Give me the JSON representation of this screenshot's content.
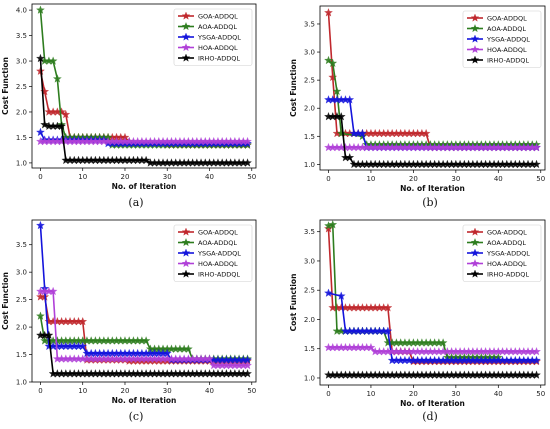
{
  "chart_data": [
    {
      "type": "line",
      "panel_label": "(a)",
      "xlabel": "No. of Iteration",
      "ylabel": "Cost Function",
      "xlim": [
        -2,
        51
      ],
      "ylim": [
        0.9,
        4.12
      ],
      "xticks": [
        0,
        10,
        20,
        30,
        40,
        50
      ],
      "yticks": [
        1.0,
        1.5,
        2.0,
        2.5,
        3.0,
        3.5,
        4.0
      ],
      "xtick_labels": [
        "0",
        "10",
        "20",
        "30",
        "40",
        "50"
      ],
      "ytick_labels": [
        "1.0",
        "1.5",
        "2.0",
        "2.5",
        "3.0",
        "3.5",
        "4.0"
      ],
      "legend_position": "top-right",
      "series": [
        {
          "name": "GOA-ADDQL",
          "color": "#c0282d",
          "points": [
            [
              0,
              2.8
            ],
            [
              1,
              2.4
            ],
            [
              2,
              2.0
            ],
            [
              5,
              2.0
            ],
            [
              6,
              1.95
            ],
            [
              7,
              1.5
            ],
            [
              20,
              1.5
            ],
            [
              21,
              1.42
            ],
            [
              30,
              1.35
            ],
            [
              49,
              1.35
            ]
          ]
        },
        {
          "name": "AOA-ADDQL",
          "color": "#2e7d1f",
          "points": [
            [
              0,
              4.0
            ],
            [
              1,
              3.0
            ],
            [
              3,
              3.0
            ],
            [
              4,
              2.65
            ],
            [
              5,
              1.75
            ],
            [
              6,
              1.5
            ],
            [
              16,
              1.5
            ],
            [
              17,
              1.35
            ],
            [
              49,
              1.35
            ]
          ]
        },
        {
          "name": "YSGA-ADDQL",
          "color": "#1414dc",
          "points": [
            [
              0,
              1.6
            ],
            [
              1,
              1.45
            ],
            [
              15,
              1.45
            ],
            [
              16,
              1.38
            ],
            [
              49,
              1.38
            ]
          ]
        },
        {
          "name": "HOA-ADDQL",
          "color": "#b040d8",
          "points": [
            [
              0,
              1.42
            ],
            [
              49,
              1.42
            ]
          ]
        },
        {
          "name": "IRHO-ADDQL",
          "color": "#000000",
          "points": [
            [
              0,
              3.05
            ],
            [
              1,
              1.75
            ],
            [
              2,
              1.72
            ],
            [
              5,
              1.72
            ],
            [
              6,
              1.05
            ],
            [
              25,
              1.05
            ],
            [
              26,
              1.0
            ],
            [
              49,
              1.0
            ]
          ]
        }
      ]
    },
    {
      "type": "line",
      "panel_label": "(b)",
      "xlabel": "No. of Iteration",
      "ylabel": "Cost Function",
      "xlim": [
        -2,
        51
      ],
      "ylim": [
        0.9,
        3.82
      ],
      "xticks": [
        0,
        10,
        20,
        30,
        40,
        50
      ],
      "yticks": [
        1.0,
        1.5,
        2.0,
        2.5,
        3.0,
        3.5
      ],
      "xtick_labels": [
        "0",
        "10",
        "20",
        "30",
        "40",
        "50"
      ],
      "ytick_labels": [
        "1.0",
        "1.5",
        "2.0",
        "2.5",
        "3.0",
        "3.5"
      ],
      "legend_position": "top-right",
      "series": [
        {
          "name": "GOA-ADDQL",
          "color": "#c0282d",
          "points": [
            [
              0,
              3.7
            ],
            [
              1,
              2.55
            ],
            [
              2,
              1.55
            ],
            [
              23,
              1.55
            ],
            [
              24,
              1.3
            ],
            [
              49,
              1.3
            ]
          ]
        },
        {
          "name": "AOA-ADDQL",
          "color": "#2e7d1f",
          "points": [
            [
              0,
              2.85
            ],
            [
              1,
              2.8
            ],
            [
              2,
              2.3
            ],
            [
              3,
              1.55
            ],
            [
              8,
              1.5
            ],
            [
              9,
              1.35
            ],
            [
              49,
              1.35
            ]
          ]
        },
        {
          "name": "YSGA-ADDQL",
          "color": "#1414dc",
          "points": [
            [
              0,
              2.15
            ],
            [
              5,
              2.15
            ],
            [
              6,
              1.55
            ],
            [
              8,
              1.55
            ],
            [
              9,
              1.3
            ],
            [
              49,
              1.3
            ]
          ]
        },
        {
          "name": "HOA-ADDQL",
          "color": "#b040d8",
          "points": [
            [
              0,
              1.3
            ],
            [
              49,
              1.3
            ]
          ]
        },
        {
          "name": "IRHO-ADDQL",
          "color": "#000000",
          "points": [
            [
              0,
              1.85
            ],
            [
              3,
              1.85
            ],
            [
              4,
              1.12
            ],
            [
              5,
              1.12
            ],
            [
              6,
              1.0
            ],
            [
              49,
              1.0
            ]
          ]
        }
      ]
    },
    {
      "type": "line",
      "panel_label": "(c)",
      "xlabel": "No. of Iteration",
      "ylabel": "Cost Function",
      "xlim": [
        -2,
        51
      ],
      "ylim": [
        1.0,
        3.95
      ],
      "xticks": [
        0,
        10,
        20,
        30,
        40,
        50
      ],
      "yticks": [
        1.0,
        1.5,
        2.0,
        2.5,
        3.0,
        3.5
      ],
      "xtick_labels": [
        "0",
        "10",
        "20",
        "30",
        "40",
        "50"
      ],
      "ytick_labels": [
        "1.0",
        "1.5",
        "2.0",
        "2.5",
        "3.0",
        "3.5"
      ],
      "legend_position": "top-right",
      "series": [
        {
          "name": "GOA-ADDQL",
          "color": "#c0282d",
          "points": [
            [
              0,
              2.55
            ],
            [
              1,
              2.55
            ],
            [
              2,
              2.1
            ],
            [
              10,
              2.1
            ],
            [
              11,
              1.4
            ],
            [
              20,
              1.4
            ],
            [
              21,
              1.38
            ],
            [
              49,
              1.38
            ]
          ]
        },
        {
          "name": "AOA-ADDQL",
          "color": "#2e7d1f",
          "points": [
            [
              0,
              2.2
            ],
            [
              1,
              1.75
            ],
            [
              25,
              1.75
            ],
            [
              26,
              1.6
            ],
            [
              35,
              1.6
            ],
            [
              36,
              1.42
            ],
            [
              49,
              1.42
            ]
          ]
        },
        {
          "name": "YSGA-ADDQL",
          "color": "#1414dc",
          "points": [
            [
              0,
              3.85
            ],
            [
              1,
              2.7
            ],
            [
              2,
              1.65
            ],
            [
              10,
              1.65
            ],
            [
              11,
              1.52
            ],
            [
              30,
              1.52
            ],
            [
              31,
              1.4
            ],
            [
              49,
              1.4
            ]
          ]
        },
        {
          "name": "HOA-ADDQL",
          "color": "#b040d8",
          "points": [
            [
              0,
              2.65
            ],
            [
              3,
              2.65
            ],
            [
              4,
              1.42
            ],
            [
              40,
              1.42
            ],
            [
              41,
              1.3
            ],
            [
              49,
              1.3
            ]
          ]
        },
        {
          "name": "IRHO-ADDQL",
          "color": "#000000",
          "points": [
            [
              0,
              1.85
            ],
            [
              2,
              1.85
            ],
            [
              3,
              1.15
            ],
            [
              49,
              1.15
            ]
          ]
        }
      ]
    },
    {
      "type": "line",
      "panel_label": "(d)",
      "xlabel": "No. of Iteration",
      "ylabel": "Cost Function",
      "xlim": [
        -2,
        51
      ],
      "ylim": [
        0.88,
        3.7
      ],
      "xticks": [
        0,
        10,
        20,
        30,
        40,
        50
      ],
      "yticks": [
        1.0,
        1.5,
        2.0,
        2.5,
        3.0,
        3.5
      ],
      "xtick_labels": [
        "0",
        "10",
        "20",
        "30",
        "40",
        "50"
      ],
      "ytick_labels": [
        "1.0",
        "1.5",
        "2.0",
        "2.5",
        "3.0",
        "3.5"
      ],
      "legend_position": "top-right",
      "series": [
        {
          "name": "GOA-ADDQL",
          "color": "#c0282d",
          "points": [
            [
              0,
              3.55
            ],
            [
              1,
              2.2
            ],
            [
              14,
              2.2
            ],
            [
              15,
              1.45
            ],
            [
              19,
              1.45
            ],
            [
              20,
              1.28
            ],
            [
              49,
              1.28
            ]
          ]
        },
        {
          "name": "AOA-ADDQL",
          "color": "#2e7d1f",
          "points": [
            [
              0,
              3.6
            ],
            [
              1,
              3.62
            ],
            [
              2,
              1.8
            ],
            [
              13,
              1.8
            ],
            [
              14,
              1.6
            ],
            [
              27,
              1.6
            ],
            [
              28,
              1.35
            ],
            [
              40,
              1.35
            ]
          ]
        },
        {
          "name": "YSGA-ADDQL",
          "color": "#1414dc",
          "points": [
            [
              0,
              2.45
            ],
            [
              3,
              2.4
            ],
            [
              4,
              1.8
            ],
            [
              14,
              1.8
            ],
            [
              15,
              1.3
            ],
            [
              49,
              1.3
            ]
          ]
        },
        {
          "name": "HOA-ADDQL",
          "color": "#b040d8",
          "points": [
            [
              0,
              1.52
            ],
            [
              10,
              1.52
            ],
            [
              11,
              1.45
            ],
            [
              49,
              1.45
            ]
          ]
        },
        {
          "name": "IRHO-ADDQL",
          "color": "#000000",
          "points": [
            [
              0,
              1.05
            ],
            [
              49,
              1.05
            ]
          ]
        }
      ]
    }
  ]
}
